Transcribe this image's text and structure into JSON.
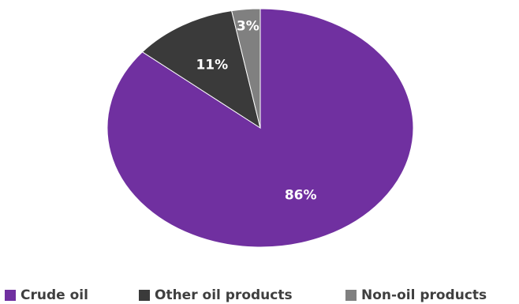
{
  "chart_data": {
    "type": "pie",
    "categories": [
      "Crude oil",
      "Other oil products",
      "Non-oil products"
    ],
    "values": [
      86,
      11,
      3
    ],
    "data_labels": [
      "86%",
      "11%",
      "3%"
    ],
    "colors": [
      "#7030a0",
      "#3a3a3a",
      "#808080"
    ],
    "legend_position": "bottom",
    "start_angle_deg": 0,
    "direction": "clockwise"
  }
}
